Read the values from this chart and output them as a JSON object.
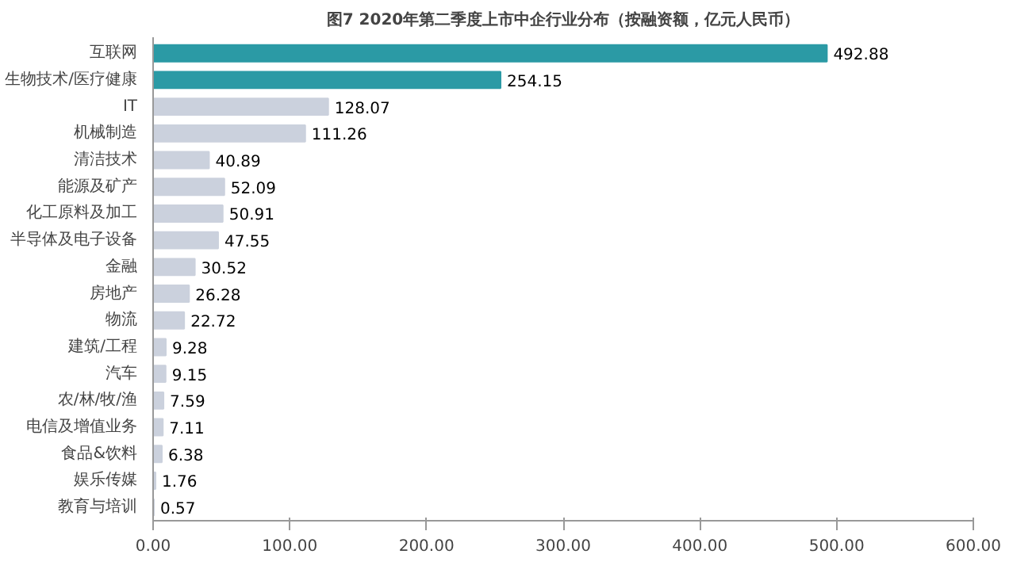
{
  "chart_data": {
    "type": "bar",
    "orientation": "horizontal",
    "title": "图7 2020年第二季度上市中企行业分布（按融资额，亿元人民币）",
    "categories": [
      "互联网",
      "生物技术/医疗健康",
      "IT",
      "机械制造",
      "清洁技术",
      "能源及矿产",
      "化工原料及加工",
      "半导体及电子设备",
      "金融",
      "房地产",
      "物流",
      "建筑/工程",
      "汽车",
      "农/林/牧/渔",
      "电信及增值业务",
      "食品&饮料",
      "娱乐传媒",
      "教育与培训"
    ],
    "values": [
      492.88,
      254.15,
      128.07,
      111.26,
      40.89,
      52.09,
      50.91,
      47.55,
      30.52,
      26.28,
      22.72,
      9.28,
      9.15,
      7.59,
      7.11,
      6.38,
      1.76,
      0.57
    ],
    "value_labels": [
      "492.88",
      "254.15",
      "128.07",
      "111.26",
      "40.89",
      "52.09",
      "50.91",
      "47.55",
      "30.52",
      "26.28",
      "22.72",
      "9.28",
      "9.15",
      "7.59",
      "7.11",
      "6.38",
      "1.76",
      "0.57"
    ],
    "colors": [
      "#2b9aa5",
      "#2b9aa5",
      "#cbd1dd",
      "#cbd1dd",
      "#cbd1dd",
      "#cbd1dd",
      "#cbd1dd",
      "#cbd1dd",
      "#cbd1dd",
      "#cbd1dd",
      "#cbd1dd",
      "#cbd1dd",
      "#cbd1dd",
      "#cbd1dd",
      "#cbd1dd",
      "#cbd1dd",
      "#cbd1dd",
      "#cbd1dd"
    ],
    "xlim": [
      0,
      600
    ],
    "xticks": [
      {
        "value": 0,
        "label": "0.00"
      },
      {
        "value": 100,
        "label": "100.00"
      },
      {
        "value": 200,
        "label": "200.00"
      },
      {
        "value": 300,
        "label": "300.00"
      },
      {
        "value": 400,
        "label": "400.00"
      },
      {
        "value": 500,
        "label": "500.00"
      },
      {
        "value": 600,
        "label": "600.00"
      }
    ],
    "grid": false
  }
}
